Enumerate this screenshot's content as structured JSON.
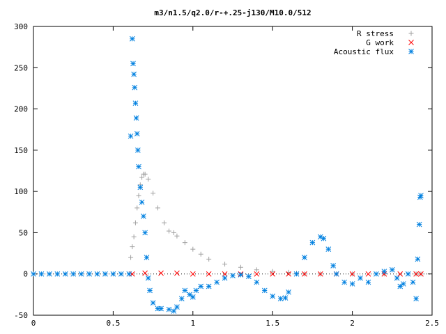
{
  "chart_data": {
    "type": "scatter",
    "title": "m3/n1.5/q2.0/r-+.25-j130/M10.0/512",
    "xlabel": "",
    "ylabel": "",
    "xlim": [
      0,
      2.5
    ],
    "ylim": [
      -50,
      300
    ],
    "xticks": [
      "0",
      "0.5",
      "1",
      "1.5",
      "2",
      "2.5"
    ],
    "yticks": [
      "-50",
      "0",
      "50",
      "100",
      "150",
      "200",
      "250",
      "300"
    ],
    "grid": false,
    "legend_position": "top-right",
    "series": [
      {
        "name": "R stress",
        "marker": "+",
        "color": "#a0a0a0",
        "x": [
          0.61,
          0.62,
          0.63,
          0.64,
          0.65,
          0.66,
          0.67,
          0.68,
          0.69,
          0.7,
          0.72,
          0.75,
          0.78,
          0.82,
          0.85,
          0.88,
          0.9,
          0.95,
          1.0,
          1.05,
          1.1,
          1.2,
          1.3,
          1.4,
          1.5,
          1.6,
          1.65,
          1.7,
          1.8,
          2.0,
          2.2,
          2.4,
          2.43
        ],
        "y": [
          20,
          33,
          45,
          62,
          80,
          95,
          108,
          117,
          121,
          121,
          115,
          98,
          80,
          62,
          52,
          50,
          46,
          38,
          30,
          24,
          18,
          12,
          8,
          5,
          3,
          2,
          1,
          0,
          0,
          0,
          0,
          0,
          0
        ]
      },
      {
        "name": "G work",
        "marker": "x",
        "color": "#ff0000",
        "x": [
          0.62,
          0.7,
          0.8,
          0.9,
          1.0,
          1.1,
          1.2,
          1.3,
          1.4,
          1.5,
          1.6,
          1.7,
          1.8,
          1.9,
          2.0,
          2.1,
          2.2,
          2.3,
          2.4,
          2.43
        ],
        "y": [
          0,
          1,
          1,
          1,
          0,
          0,
          0,
          0,
          0,
          0,
          0,
          0,
          0,
          0,
          0,
          0,
          0,
          0,
          0,
          0
        ]
      },
      {
        "name": "Acoustic flux",
        "marker": "*",
        "color": "#0080e0",
        "x": [
          0,
          0.05,
          0.1,
          0.15,
          0.2,
          0.25,
          0.3,
          0.35,
          0.4,
          0.45,
          0.5,
          0.55,
          0.6,
          0.61,
          0.62,
          0.625,
          0.63,
          0.635,
          0.64,
          0.645,
          0.65,
          0.655,
          0.66,
          0.67,
          0.68,
          0.69,
          0.7,
          0.71,
          0.72,
          0.73,
          0.75,
          0.78,
          0.8,
          0.85,
          0.88,
          0.9,
          0.93,
          0.95,
          0.98,
          1.0,
          1.02,
          1.05,
          1.1,
          1.15,
          1.2,
          1.25,
          1.3,
          1.35,
          1.4,
          1.45,
          1.5,
          1.55,
          1.58,
          1.6,
          1.65,
          1.7,
          1.75,
          1.8,
          1.82,
          1.85,
          1.88,
          1.9,
          1.95,
          2.0,
          2.05,
          2.1,
          2.15,
          2.2,
          2.25,
          2.28,
          2.3,
          2.32,
          2.35,
          2.38,
          2.4,
          2.41,
          2.42,
          2.425,
          2.43
        ],
        "y": [
          0,
          0,
          0,
          0,
          0,
          0,
          0,
          0,
          0,
          0,
          0,
          0,
          0,
          167,
          285,
          255,
          242,
          226,
          207,
          189,
          170,
          150,
          130,
          105,
          87,
          70,
          50,
          20,
          -5,
          -20,
          -35,
          -42,
          -42,
          -43,
          -45,
          -40,
          -30,
          -20,
          -25,
          -28,
          -20,
          -15,
          -15,
          -10,
          -5,
          -2,
          -1,
          -3,
          -10,
          -20,
          -27,
          -30,
          -29,
          -22,
          0,
          20,
          38,
          45,
          43,
          30,
          10,
          0,
          -10,
          -12,
          -5,
          -10,
          0,
          3,
          5,
          -5,
          -15,
          -12,
          0,
          -10,
          -30,
          18,
          60,
          93,
          95
        ]
      }
    ]
  }
}
